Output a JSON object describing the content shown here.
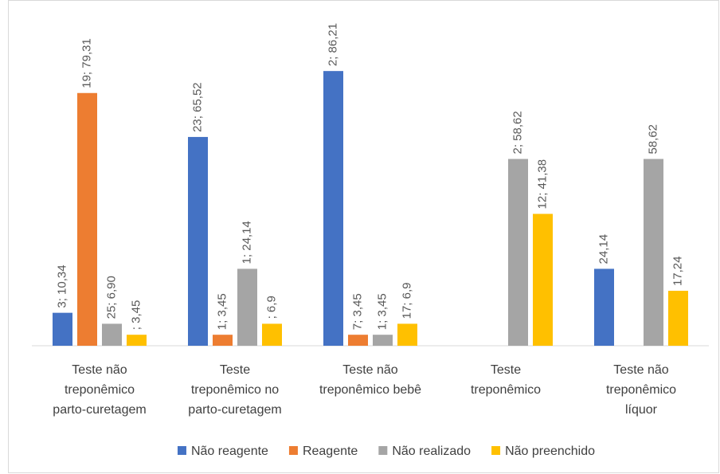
{
  "chart_data": {
    "type": "bar",
    "categories": [
      [
        "Teste não",
        "treponêmico",
        "parto-curetagem"
      ],
      [
        "Teste",
        "treponêmico no",
        "parto-curetagem"
      ],
      [
        "Teste não",
        "treponêmico bebê"
      ],
      [
        "Teste",
        "treponêmico"
      ],
      [
        "Teste não",
        "treponêmico",
        "líquor"
      ]
    ],
    "series": [
      {
        "name": "Não reagente",
        "color": "#4472c4",
        "values": [
          10.34,
          65.52,
          86.21,
          null,
          24.14
        ],
        "value_labels": [
          "3; 10,34",
          "23; 65,52",
          "2; 86,21",
          null,
          "24,14"
        ]
      },
      {
        "name": "Reagente",
        "color": "#ed7d31",
        "values": [
          79.31,
          3.45,
          3.45,
          null,
          null
        ],
        "value_labels": [
          "19; 79,31",
          "1; 3,45",
          "7; 3,45",
          null,
          null
        ]
      },
      {
        "name": "Não realizado",
        "color": "#a5a5a5",
        "values": [
          6.9,
          24.14,
          3.45,
          58.62,
          58.62
        ],
        "value_labels": [
          "25; 6,90",
          "1; 24,14",
          "1; 3,45",
          "2; 58,62",
          "58,62"
        ]
      },
      {
        "name": "Não preenchido",
        "color": "#ffc000",
        "values": [
          3.45,
          6.9,
          6.9,
          41.38,
          17.24
        ],
        "value_labels": [
          "; 3,45",
          "; 6,9",
          "17; 6,9",
          "12; 41,38",
          "17,24"
        ]
      }
    ],
    "ylim": [
      0,
      100
    ],
    "legend": "bottom"
  }
}
